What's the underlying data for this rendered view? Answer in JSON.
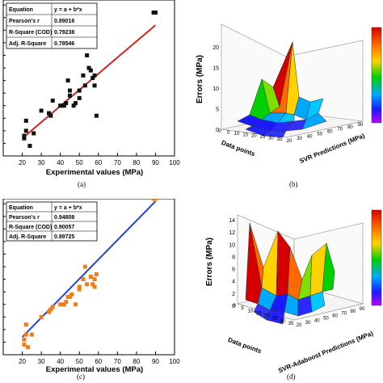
{
  "colors": {
    "scatter_a": "#111111",
    "fit_a": "#d42020",
    "scatter_c": "#f07e18",
    "fit_c": "#2244cc"
  },
  "panel_labels": [
    "(a)",
    "(b)",
    "(c)",
    "(d)"
  ],
  "chart_data": [
    {
      "type": "scatter",
      "panel": "(a)",
      "xlabel": "Experimental values (MPa)",
      "ylabel": "",
      "xlim": [
        10,
        100
      ],
      "x_ticks": [
        "20",
        "30",
        "40",
        "50",
        "60",
        "70",
        "80",
        "90",
        "100"
      ],
      "grid": false,
      "stats_table": [
        [
          "Equation",
          "y = a + b*x"
        ],
        [
          "Pearson's r",
          "0.89016"
        ],
        [
          "R-Square (COD)",
          "0.79238"
        ],
        [
          "Adj. R-Square",
          "0.78546"
        ]
      ],
      "points_x": [
        21,
        21,
        22,
        22,
        24,
        26,
        30,
        34,
        35,
        36,
        40,
        41,
        42,
        43,
        44,
        45,
        45,
        47,
        48,
        50,
        50,
        52,
        53,
        54,
        55,
        56,
        57,
        58,
        58,
        59,
        89,
        90
      ],
      "points_y": [
        17,
        18,
        24,
        20,
        14,
        19,
        28,
        27,
        26,
        32,
        30,
        30,
        30,
        31,
        40,
        34,
        36,
        30,
        31,
        36,
        33,
        42,
        38,
        50,
        45,
        44,
        41,
        38,
        42,
        26,
        67,
        67
      ],
      "fit_line": {
        "x": [
          20,
          90
        ],
        "y": [
          17,
          62
        ]
      }
    },
    {
      "type": "surface",
      "panel": "(b)",
      "zlabel": "Errors (MPa)",
      "xlabel": "Data points",
      "ylabel": "SVR Predictions (MPa)",
      "z_ticks": [
        "0",
        "5",
        "10",
        "15",
        "20"
      ],
      "x_ticks": [
        "0",
        "5",
        "10",
        "15",
        "20",
        "25",
        "30",
        "35"
      ],
      "y_ticks": [
        "20",
        "30",
        "40",
        "50",
        "60",
        "70",
        "80",
        "90"
      ],
      "colormap": [
        "#d40000",
        "#ff6a00",
        "#ffd200",
        "#00d000",
        "#00a8ff",
        "#1a1aff",
        "#c000ff"
      ]
    },
    {
      "type": "scatter",
      "panel": "(c)",
      "xlabel": "Experimental values (MPa)",
      "ylabel": "",
      "xlim": [
        10,
        100
      ],
      "x_ticks": [
        "20",
        "30",
        "40",
        "50",
        "60",
        "70",
        "80",
        "90",
        "100"
      ],
      "grid": false,
      "stats_table": [
        [
          "Equation",
          "y = a + b*x"
        ],
        [
          "Pearson's r",
          "0.94808"
        ],
        [
          "R-Square (COD)",
          "0.90057"
        ],
        [
          "Adj. R-Square",
          "0.89725"
        ]
      ],
      "points_x": [
        21,
        21,
        22,
        22,
        23,
        25,
        30,
        34,
        35,
        36,
        40,
        42,
        43,
        44,
        45,
        46,
        48,
        50,
        50,
        52,
        53,
        54,
        56,
        57,
        58,
        58,
        59,
        89,
        90
      ],
      "points_y": [
        14,
        16,
        18,
        22,
        13,
        18,
        25,
        27,
        28,
        29,
        30,
        30,
        31,
        33,
        33,
        34,
        30,
        36,
        37,
        40,
        45,
        38,
        41,
        38,
        40,
        37,
        42,
        72,
        72
      ],
      "fit_line": {
        "x": [
          20,
          90
        ],
        "y": [
          17,
          71
        ]
      }
    },
    {
      "type": "surface",
      "panel": "(d)",
      "zlabel": "Errors (MPa)",
      "xlabel": "Data points",
      "ylabel": "SVR-Adaboost Predictions (MPa)",
      "z_ticks": [
        "0",
        "2",
        "4",
        "6",
        "8",
        "10",
        "12",
        "14"
      ],
      "x_ticks": [
        "0",
        "5",
        "10",
        "15",
        "20",
        "25",
        "30",
        "35"
      ],
      "y_ticks": [
        "20",
        "30",
        "40",
        "50",
        "60",
        "70",
        "80",
        "90"
      ],
      "colormap": [
        "#d40000",
        "#ff6a00",
        "#ffd200",
        "#00d000",
        "#00a8ff",
        "#1a1aff",
        "#c000ff"
      ]
    }
  ]
}
